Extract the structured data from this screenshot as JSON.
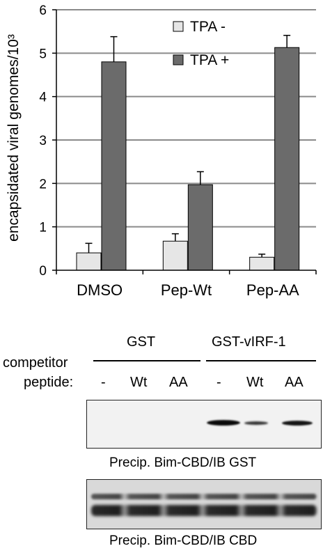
{
  "chart_data": {
    "type": "bar",
    "ylabel": "encapsidated viral genomes/10³",
    "ylim": [
      0,
      6
    ],
    "yticks": [
      "0",
      "1",
      "2",
      "3",
      "4",
      "5",
      "6"
    ],
    "grid": true,
    "legend": "top-right",
    "categories": [
      "DMSO",
      "Pep-Wt",
      "Pep-AA"
    ],
    "series": [
      {
        "name": "TPA -",
        "color": "#e6e6e6",
        "values": [
          0.4,
          0.67,
          0.3
        ],
        "errors": [
          0.22,
          0.17,
          0.07
        ]
      },
      {
        "name": "TPA +",
        "color": "#6b6b6b",
        "values": [
          4.8,
          1.97,
          5.13
        ],
        "errors": [
          0.58,
          0.3,
          0.28
        ]
      }
    ]
  },
  "blot": {
    "group_labels": [
      "GST",
      "GST-vIRF-1"
    ],
    "row_label_competitor": "competitor",
    "row_label_peptide": "peptide:",
    "lanes": [
      "-",
      "Wt",
      "AA",
      "-",
      "Wt",
      "AA"
    ],
    "panel1_caption": "Precip. Bim-CBD/IB GST",
    "panel2_caption": "Precip. Bim-CBD/IB CBD",
    "panel1_band_intensity": [
      0,
      0,
      0,
      1.0,
      0.45,
      0.8
    ]
  }
}
